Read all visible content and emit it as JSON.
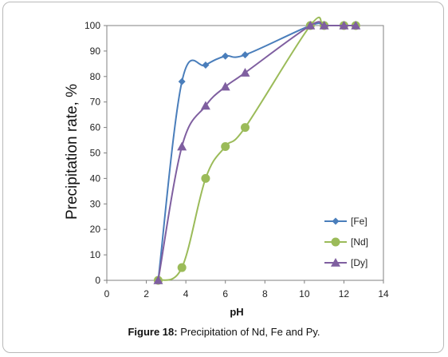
{
  "caption": {
    "label": "Figure 18:",
    "text": " Precipitation of Nd, Fe and Py."
  },
  "chart_data": {
    "type": "line",
    "title": "",
    "xlabel": "pH",
    "ylabel": "Precipitation rate, %",
    "xlim": [
      0,
      14
    ],
    "ylim": [
      0,
      100
    ],
    "xticks": [
      0,
      2,
      4,
      6,
      8,
      10,
      12,
      14
    ],
    "yticks": [
      0,
      10,
      20,
      30,
      40,
      50,
      60,
      70,
      80,
      90,
      100
    ],
    "grid": false,
    "legend_position": "right",
    "series": [
      {
        "name": "[Fe]",
        "color": "#4a7ebb",
        "marker": "diamond",
        "x": [
          2.6,
          3.8,
          5.0,
          6.0,
          7.0,
          10.3,
          11.0,
          12.0,
          12.6
        ],
        "y": [
          0,
          78,
          84.5,
          88,
          88.5,
          100,
          100,
          100,
          100
        ]
      },
      {
        "name": "[Nd]",
        "color": "#9bbb59",
        "marker": "circle",
        "x": [
          2.6,
          3.8,
          5.0,
          6.0,
          7.0,
          10.3,
          11.0,
          12.0,
          12.6
        ],
        "y": [
          0,
          5,
          40,
          52.5,
          60,
          100,
          100,
          100,
          100
        ]
      },
      {
        "name": "[Dy]",
        "color": "#7f5fa0",
        "marker": "triangle",
        "x": [
          2.6,
          3.8,
          5.0,
          6.0,
          7.0,
          10.3,
          11.0,
          12.0,
          12.6
        ],
        "y": [
          0,
          52.5,
          68.5,
          76,
          81.5,
          100,
          100,
          100,
          100
        ]
      }
    ]
  }
}
